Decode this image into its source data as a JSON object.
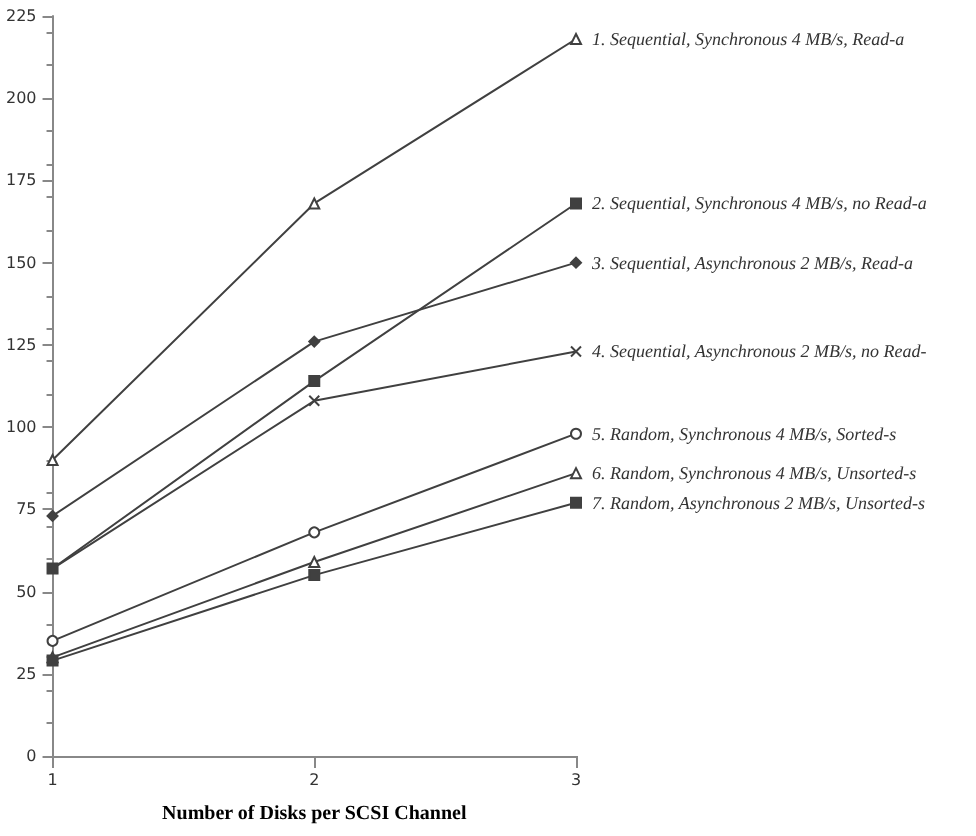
{
  "chart_data": {
    "type": "line",
    "xlabel": "Number of Disks per SCSI Channel",
    "x": [
      1,
      2,
      3
    ],
    "xlim": [
      1,
      3
    ],
    "xticks": [
      1,
      2,
      3
    ],
    "ylim": [
      0,
      225
    ],
    "yticks": [
      0,
      25,
      50,
      75,
      100,
      125,
      150,
      175,
      200,
      225
    ],
    "grid": false,
    "legend": false,
    "line_style": "solid",
    "series": [
      {
        "name": "1. Sequential, Synchronous 4 MB/s, Read-a",
        "color": "#404040",
        "marker": "triangle",
        "values": [
          90,
          168,
          218
        ]
      },
      {
        "name": "2. Sequential, Synchronous 4 MB/s, no Read-a",
        "color": "#404040",
        "marker": "square",
        "values": [
          57,
          114,
          168
        ]
      },
      {
        "name": "3. Sequential, Asynchronous 2 MB/s, Read-a",
        "color": "#404040",
        "marker": "diamond",
        "values": [
          73,
          126,
          150
        ]
      },
      {
        "name": "4. Sequential, Asynchronous 2 MB/s, no Read-",
        "color": "#404040",
        "marker": "cross",
        "values": [
          57,
          108,
          123
        ]
      },
      {
        "name": "5. Random, Synchronous 4 MB/s, Sorted-s",
        "color": "#404040",
        "marker": "circle",
        "values": [
          35,
          68,
          98
        ]
      },
      {
        "name": "6. Random, Synchronous 4 MB/s, Unsorted-s",
        "color": "#404040",
        "marker": "triangle",
        "values": [
          30,
          59,
          86
        ]
      },
      {
        "name": "7. Random, Asynchronous 2 MB/s, Unsorted-s",
        "color": "#404040",
        "marker": "square",
        "values": [
          29,
          55,
          77
        ]
      }
    ]
  }
}
